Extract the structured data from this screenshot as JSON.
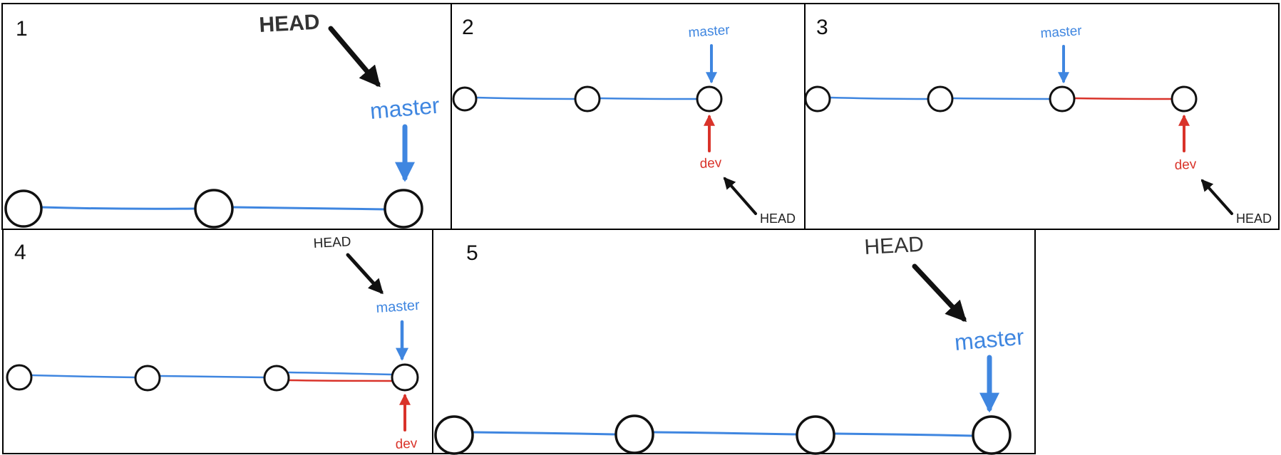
{
  "colors": {
    "master": "#3f86e0",
    "dev": "#d9332a",
    "head": "#111111",
    "border": "#000000",
    "background": "#ffffff"
  },
  "panels": [
    {
      "number": "1",
      "head_label": "HEAD",
      "master_label": "master"
    },
    {
      "number": "2",
      "head_label": "HEAD",
      "master_label": "master",
      "dev_label": "dev"
    },
    {
      "number": "3",
      "head_label": "HEAD",
      "master_label": "master",
      "dev_label": "dev"
    },
    {
      "number": "4",
      "head_label": "HEAD",
      "master_label": "master",
      "dev_label": "dev"
    },
    {
      "number": "5",
      "head_label": "HEAD",
      "master_label": "master"
    }
  ]
}
